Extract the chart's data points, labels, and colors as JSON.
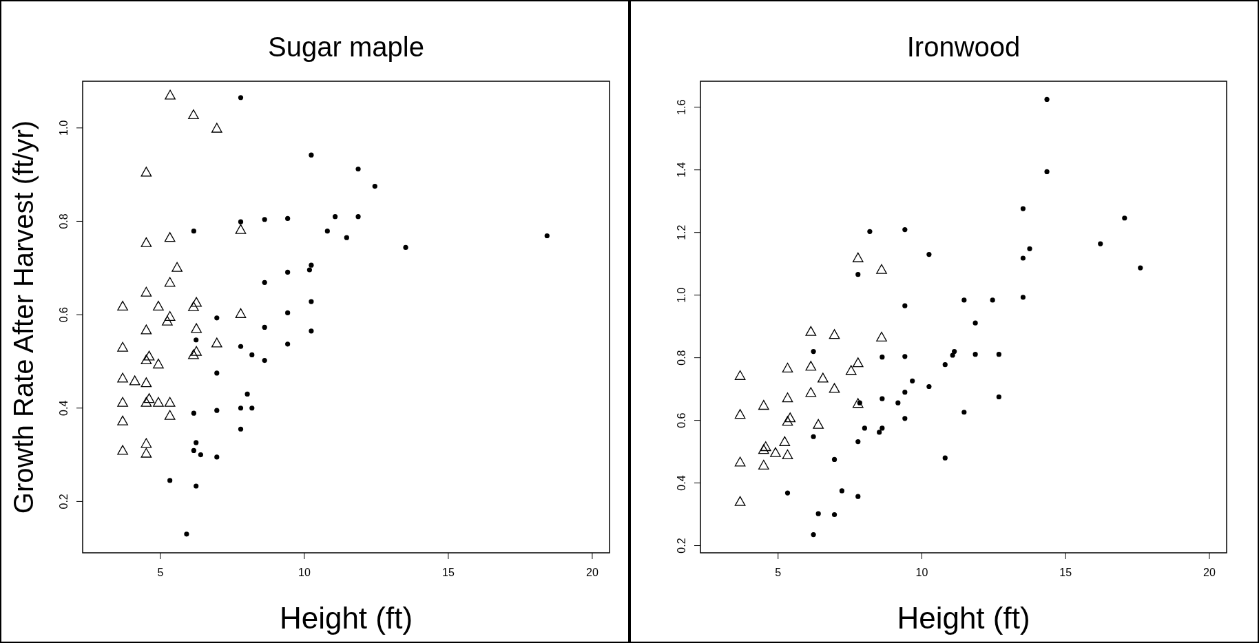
{
  "chart_data": [
    {
      "type": "scatter",
      "title": "Sugar maple",
      "xlabel": "Height (ft)",
      "ylabel": "Growth Rate After Harvest (ft/yr)",
      "xlim": [
        2.3,
        20.6
      ],
      "ylim": [
        0.09,
        1.1
      ],
      "xticks": [
        5,
        10,
        15,
        20
      ],
      "yticks": [
        0.2,
        0.4,
        0.6,
        0.8,
        {
          "value": 1,
          "label": "1.0"
        }
      ],
      "series": [
        {
          "color": "#000000",
          "marker": "triangle",
          "x": [
            5.34,
            6.15,
            6.96,
            4.51,
            7.79,
            5.33,
            4.51,
            5.58,
            5.33,
            4.51,
            3.69,
            4.93,
            6.25,
            6.15,
            5.33,
            5.24,
            7.79,
            4.51,
            6.25,
            3.69,
            6.96,
            4.61,
            4.51,
            6.25,
            6.15,
            4.93,
            3.69,
            4.11,
            4.51,
            3.69,
            4.51,
            4.61,
            4.93,
            5.33,
            5.33,
            3.69,
            4.51,
            3.69,
            4.51
          ],
          "values": [
            1.069,
            1.027,
            0.998,
            0.904,
            0.781,
            0.764,
            0.753,
            0.7,
            0.668,
            0.647,
            0.617,
            0.617,
            0.625,
            0.616,
            0.595,
            0.585,
            0.601,
            0.566,
            0.569,
            0.529,
            0.538,
            0.51,
            0.502,
            0.52,
            0.513,
            0.493,
            0.463,
            0.457,
            0.453,
            0.411,
            0.411,
            0.419,
            0.411,
            0.411,
            0.383,
            0.371,
            0.323,
            0.308,
            0.302
          ]
        },
        {
          "color": "#000000",
          "marker": "circle",
          "x": [
            7.79,
            10.24,
            11.87,
            12.45,
            7.79,
            8.62,
            9.42,
            11.07,
            11.87,
            6.16,
            10.8,
            11.47,
            18.43,
            13.52,
            10.24,
            10.18,
            9.42,
            8.62,
            10.24,
            9.42,
            6.96,
            8.62,
            10.24,
            6.24,
            7.79,
            9.42,
            8.18,
            8.62,
            6.96,
            8.02,
            6.16,
            6.96,
            7.79,
            8.18,
            7.79,
            6.24,
            6.16,
            6.4,
            6.96,
            5.33,
            6.24,
            5.91
          ],
          "values": [
            1.065,
            0.942,
            0.912,
            0.875,
            0.799,
            0.804,
            0.806,
            0.81,
            0.81,
            0.779,
            0.779,
            0.765,
            0.769,
            0.744,
            0.706,
            0.696,
            0.691,
            0.669,
            0.628,
            0.604,
            0.593,
            0.573,
            0.565,
            0.546,
            0.532,
            0.537,
            0.514,
            0.502,
            0.475,
            0.43,
            0.389,
            0.395,
            0.4,
            0.4,
            0.355,
            0.326,
            0.309,
            0.3,
            0.295,
            0.245,
            0.233,
            0.13
          ]
        }
      ]
    },
    {
      "type": "scatter",
      "title": "Ironwood",
      "xlabel": "Height (ft)",
      "xlim": [
        2.3,
        20.6
      ],
      "ylim": [
        0.177,
        1.683
      ],
      "xticks": [
        5,
        10,
        15,
        20
      ],
      "yticks": [
        0.2,
        0.4,
        0.6,
        0.8,
        {
          "value": 1,
          "label": "1.0"
        },
        1.2,
        1.4,
        1.6
      ],
      "series": [
        {
          "color": "#000000",
          "marker": "triangle",
          "x": [
            7.78,
            8.6,
            6.14,
            6.96,
            8.6,
            3.68,
            5.33,
            6.14,
            7.78,
            7.54,
            6.56,
            6.96,
            6.14,
            5.33,
            7.78,
            4.5,
            3.68,
            5.42,
            5.33,
            6.4,
            5.23,
            4.5,
            4.57,
            4.91,
            5.33,
            3.68,
            4.5,
            3.68
          ],
          "values": [
            1.117,
            1.08,
            0.882,
            0.872,
            0.864,
            0.741,
            0.765,
            0.771,
            0.782,
            0.757,
            0.733,
            0.7,
            0.687,
            0.67,
            0.652,
            0.646,
            0.617,
            0.606,
            0.595,
            0.585,
            0.53,
            0.505,
            0.514,
            0.495,
            0.488,
            0.465,
            0.455,
            0.339
          ]
        },
        {
          "color": "#000000",
          "marker": "circle",
          "x": [
            14.35,
            14.35,
            13.52,
            17.05,
            8.19,
            9.41,
            16.21,
            13.75,
            10.25,
            13.52,
            17.6,
            7.78,
            13.52,
            11.47,
            12.46,
            9.41,
            11.86,
            6.23,
            8.62,
            9.41,
            11.13,
            11.07,
            11.86,
            12.68,
            10.81,
            9.67,
            10.25,
            9.41,
            12.68,
            8.62,
            7.84,
            9.17,
            9.41,
            11.47,
            8.01,
            8.62,
            8.52,
            6.23,
            7.78,
            10.81,
            6.96,
            5.33,
            7.22,
            7.78,
            6.4,
            6.96,
            6.23
          ],
          "values": [
            1.625,
            1.394,
            1.276,
            1.246,
            1.203,
            1.209,
            1.164,
            1.148,
            1.13,
            1.118,
            1.087,
            1.066,
            0.993,
            0.984,
            0.984,
            0.966,
            0.911,
            0.82,
            0.802,
            0.804,
            0.82,
            0.808,
            0.811,
            0.811,
            0.778,
            0.726,
            0.708,
            0.69,
            0.675,
            0.669,
            0.656,
            0.656,
            0.606,
            0.626,
            0.575,
            0.575,
            0.562,
            0.548,
            0.532,
            0.48,
            0.475,
            0.368,
            0.375,
            0.357,
            0.302,
            0.299,
            0.235
          ]
        }
      ]
    }
  ]
}
